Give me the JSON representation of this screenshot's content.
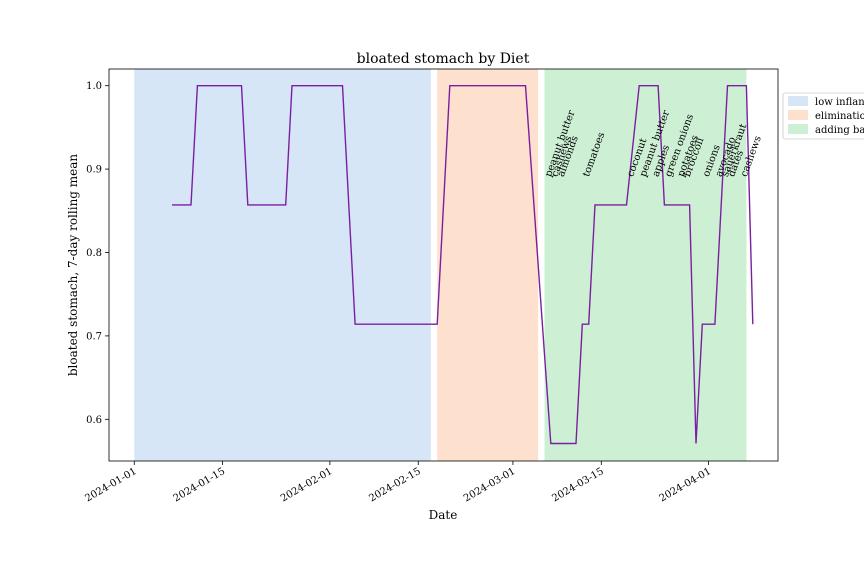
{
  "chart_data": {
    "type": "line",
    "title": "bloated stomach by Diet",
    "xlabel": "Date",
    "ylabel": "bloated stomach, 7-day rolling mean",
    "xlim": [
      "2023-12-28",
      "2024-04-12"
    ],
    "ylim": [
      0.55,
      1.02
    ],
    "grid": false,
    "legend_placement": "upper-right",
    "line_color": "#7b1fa2",
    "x_ticks": [
      "2024-01-01",
      "2024-01-15",
      "2024-02-01",
      "2024-02-15",
      "2024-03-01",
      "2024-03-15",
      "2024-04-01"
    ],
    "y_ticks": [
      "0.6",
      "0.7",
      "0.8",
      "0.9",
      "1.0"
    ],
    "phases": [
      {
        "label": "low inflan",
        "start": "2024-01-01",
        "end": "2024-02-17",
        "color": "#d6e6f7"
      },
      {
        "label": "eliminatio",
        "start": "2024-02-18",
        "end": "2024-03-05",
        "color": "#fde0ce"
      },
      {
        "label": "adding ba",
        "start": "2024-03-06",
        "end": "2024-04-07",
        "color": "#cdf0d5"
      }
    ],
    "series": [
      {
        "x": [
          "2024-01-07",
          "2024-01-10",
          "2024-01-11",
          "2024-01-18",
          "2024-01-19",
          "2024-01-25",
          "2024-01-26",
          "2024-02-03",
          "2024-02-05",
          "2024-02-18",
          "2024-02-20",
          "2024-03-03",
          "2024-03-07",
          "2024-03-11",
          "2024-03-12",
          "2024-03-13",
          "2024-03-14",
          "2024-03-19",
          "2024-03-21",
          "2024-03-24",
          "2024-03-25",
          "2024-03-29",
          "2024-03-30",
          "2024-03-31",
          "2024-04-02",
          "2024-04-04",
          "2024-04-05",
          "2024-04-07",
          "2024-04-08"
        ],
        "y": [
          0.857,
          0.857,
          1.0,
          1.0,
          0.857,
          0.857,
          1.0,
          1.0,
          0.714,
          0.714,
          1.0,
          1.0,
          0.571,
          0.571,
          0.714,
          0.714,
          0.857,
          0.857,
          1.0,
          1.0,
          0.857,
          0.857,
          0.571,
          0.714,
          0.714,
          1.0,
          1.0,
          1.0,
          0.714
        ]
      }
    ],
    "annotations": [
      {
        "text": "peanut butter",
        "x": "2024-03-07",
        "y": 0.89
      },
      {
        "text": "cashews",
        "x": "2024-03-08",
        "y": 0.89
      },
      {
        "text": "almonds",
        "x": "2024-03-09",
        "y": 0.89
      },
      {
        "text": "tomatoes",
        "x": "2024-03-13",
        "y": 0.89
      },
      {
        "text": "coconut",
        "x": "2024-03-20",
        "y": 0.89
      },
      {
        "text": "peanut butter",
        "x": "2024-03-22",
        "y": 0.89
      },
      {
        "text": "apples",
        "x": "2024-03-24",
        "y": 0.89
      },
      {
        "text": "green onions",
        "x": "2024-03-26",
        "y": 0.89
      },
      {
        "text": "potatoes",
        "x": "2024-03-28",
        "y": 0.89
      },
      {
        "text": "broccoli",
        "x": "2024-03-29",
        "y": 0.89
      },
      {
        "text": "onions",
        "x": "2024-04-01",
        "y": 0.89
      },
      {
        "text": "avocado",
        "x": "2024-04-03",
        "y": 0.89
      },
      {
        "text": "sauerkraut",
        "x": "2024-04-04",
        "y": 0.89
      },
      {
        "text": "dates",
        "x": "2024-04-05",
        "y": 0.89
      },
      {
        "text": "cashews",
        "x": "2024-04-07",
        "y": 0.89
      }
    ]
  }
}
